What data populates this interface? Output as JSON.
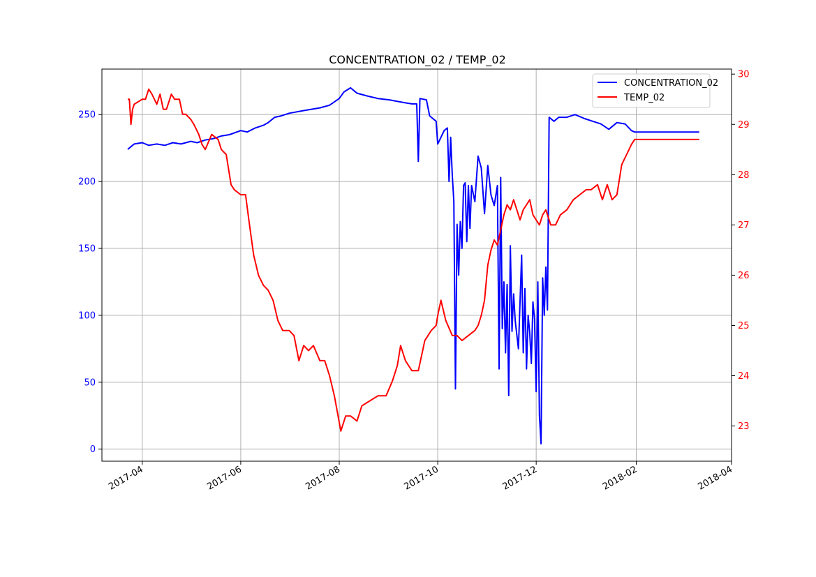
{
  "chart_data": {
    "type": "line",
    "title": "CONCENTRATION_02 / TEMP_02",
    "xlabel": "",
    "ylabel": "",
    "y2label": "",
    "x_type": "date",
    "xlim": [
      "2017-03-07",
      "2018-04-01"
    ],
    "x_ticks": [
      "2017-04-01",
      "2017-06-01",
      "2017-08-01",
      "2017-10-01",
      "2017-12-01",
      "2018-02-01",
      "2018-04-01"
    ],
    "x_tick_labels": [
      "2017-04",
      "2017-06",
      "2017-08",
      "2017-10",
      "2017-12",
      "2018-02",
      "2018-04"
    ],
    "ylim": [
      -9,
      284
    ],
    "y_ticks": [
      0,
      50,
      100,
      150,
      200,
      250
    ],
    "y2lim": [
      22.3,
      30.1
    ],
    "y2_ticks": [
      23,
      24,
      25,
      26,
      27,
      28,
      29,
      30
    ],
    "grid": true,
    "legend_position": "upper right",
    "colors": {
      "primary_axis": "#0000ff",
      "secondary_axis": "#ff0000",
      "grid": "#b0b0b0"
    },
    "series": [
      {
        "name": "CONCENTRATION_02",
        "axis": "left",
        "color": "#0000ff",
        "points": [
          [
            "2017-03-23",
            224
          ],
          [
            "2017-03-25",
            226
          ],
          [
            "2017-03-27",
            228
          ],
          [
            "2017-04-01",
            229
          ],
          [
            "2017-04-05",
            227
          ],
          [
            "2017-04-10",
            228
          ],
          [
            "2017-04-15",
            227
          ],
          [
            "2017-04-20",
            229
          ],
          [
            "2017-04-25",
            228
          ],
          [
            "2017-05-01",
            230
          ],
          [
            "2017-05-05",
            229
          ],
          [
            "2017-05-10",
            231
          ],
          [
            "2017-05-15",
            232
          ],
          [
            "2017-05-20",
            234
          ],
          [
            "2017-05-25",
            235
          ],
          [
            "2017-06-01",
            238
          ],
          [
            "2017-06-05",
            237
          ],
          [
            "2017-06-10",
            240
          ],
          [
            "2017-06-15",
            242
          ],
          [
            "2017-06-18",
            244
          ],
          [
            "2017-06-22",
            248
          ],
          [
            "2017-06-26",
            249
          ],
          [
            "2017-07-01",
            251
          ],
          [
            "2017-07-10",
            253
          ],
          [
            "2017-07-20",
            255
          ],
          [
            "2017-07-26",
            257
          ],
          [
            "2017-08-01",
            262
          ],
          [
            "2017-08-04",
            267
          ],
          [
            "2017-08-08",
            270
          ],
          [
            "2017-08-12",
            266
          ],
          [
            "2017-08-18",
            264
          ],
          [
            "2017-08-25",
            262
          ],
          [
            "2017-09-01",
            261
          ],
          [
            "2017-09-10",
            259
          ],
          [
            "2017-09-15",
            258
          ],
          [
            "2017-09-18",
            258
          ],
          [
            "2017-09-19",
            215
          ],
          [
            "2017-09-20",
            262
          ],
          [
            "2017-09-24",
            261
          ],
          [
            "2017-09-26",
            249
          ],
          [
            "2017-09-30",
            245
          ],
          [
            "2017-10-01",
            228
          ],
          [
            "2017-10-03",
            233
          ],
          [
            "2017-10-05",
            238
          ],
          [
            "2017-10-07",
            240
          ],
          [
            "2017-10-08",
            200
          ],
          [
            "2017-10-09",
            233
          ],
          [
            "2017-10-10",
            205
          ],
          [
            "2017-10-11",
            185
          ],
          [
            "2017-10-12",
            45
          ],
          [
            "2017-10-13",
            168
          ],
          [
            "2017-10-14",
            130
          ],
          [
            "2017-10-15",
            170
          ],
          [
            "2017-10-16",
            150
          ],
          [
            "2017-10-17",
            197
          ],
          [
            "2017-10-18",
            199
          ],
          [
            "2017-10-19",
            155
          ],
          [
            "2017-10-20",
            197
          ],
          [
            "2017-10-21",
            165
          ],
          [
            "2017-10-22",
            197
          ],
          [
            "2017-10-24",
            185
          ],
          [
            "2017-10-26",
            219
          ],
          [
            "2017-10-28",
            210
          ],
          [
            "2017-10-30",
            176
          ],
          [
            "2017-11-01",
            212
          ],
          [
            "2017-11-03",
            190
          ],
          [
            "2017-11-05",
            182
          ],
          [
            "2017-11-07",
            197
          ],
          [
            "2017-11-08",
            60
          ],
          [
            "2017-11-09",
            203
          ],
          [
            "2017-11-10",
            90
          ],
          [
            "2017-11-11",
            125
          ],
          [
            "2017-11-12",
            72
          ],
          [
            "2017-11-13",
            123
          ],
          [
            "2017-11-14",
            40
          ],
          [
            "2017-11-15",
            152
          ],
          [
            "2017-11-16",
            88
          ],
          [
            "2017-11-17",
            116
          ],
          [
            "2017-11-18",
            96
          ],
          [
            "2017-11-20",
            75
          ],
          [
            "2017-11-22",
            145
          ],
          [
            "2017-11-23",
            72
          ],
          [
            "2017-11-24",
            120
          ],
          [
            "2017-11-25",
            60
          ],
          [
            "2017-11-26",
            100
          ],
          [
            "2017-11-27",
            87
          ],
          [
            "2017-11-28",
            64
          ],
          [
            "2017-11-29",
            110
          ],
          [
            "2017-11-30",
            97
          ],
          [
            "2017-12-01",
            43
          ],
          [
            "2017-12-02",
            125
          ],
          [
            "2017-12-03",
            25
          ],
          [
            "2017-12-04",
            4
          ],
          [
            "2017-12-05",
            128
          ],
          [
            "2017-12-06",
            100
          ],
          [
            "2017-12-07",
            136
          ],
          [
            "2017-12-08",
            104
          ],
          [
            "2017-12-09",
            248
          ],
          [
            "2017-12-12",
            245
          ],
          [
            "2017-12-15",
            248
          ],
          [
            "2017-12-20",
            248
          ],
          [
            "2017-12-25",
            250
          ],
          [
            "2017-12-31",
            247
          ],
          [
            "2018-01-05",
            245
          ],
          [
            "2018-01-10",
            243
          ],
          [
            "2018-01-15",
            239
          ],
          [
            "2018-01-20",
            244
          ],
          [
            "2018-01-25",
            243
          ],
          [
            "2018-01-29",
            238
          ],
          [
            "2018-01-31",
            237
          ],
          [
            "2018-02-08",
            237
          ],
          [
            "2018-03-12",
            237
          ]
        ]
      },
      {
        "name": "TEMP_02",
        "axis": "right",
        "color": "#ff0000",
        "points": [
          [
            "2017-03-23",
            29.5
          ],
          [
            "2017-03-24",
            29.5
          ],
          [
            "2017-03-25",
            29.0
          ],
          [
            "2017-03-26",
            29.3
          ],
          [
            "2017-03-27",
            29.4
          ],
          [
            "2017-04-01",
            29.5
          ],
          [
            "2017-04-03",
            29.5
          ],
          [
            "2017-04-05",
            29.7
          ],
          [
            "2017-04-07",
            29.6
          ],
          [
            "2017-04-10",
            29.4
          ],
          [
            "2017-04-12",
            29.6
          ],
          [
            "2017-04-14",
            29.3
          ],
          [
            "2017-04-16",
            29.3
          ],
          [
            "2017-04-19",
            29.6
          ],
          [
            "2017-04-21",
            29.5
          ],
          [
            "2017-04-24",
            29.5
          ],
          [
            "2017-04-26",
            29.2
          ],
          [
            "2017-04-28",
            29.2
          ],
          [
            "2017-05-01",
            29.1
          ],
          [
            "2017-05-03",
            29.0
          ],
          [
            "2017-05-06",
            28.8
          ],
          [
            "2017-05-08",
            28.6
          ],
          [
            "2017-05-10",
            28.5
          ],
          [
            "2017-05-14",
            28.8
          ],
          [
            "2017-05-18",
            28.7
          ],
          [
            "2017-05-20",
            28.5
          ],
          [
            "2017-05-23",
            28.4
          ],
          [
            "2017-05-26",
            27.8
          ],
          [
            "2017-05-28",
            27.7
          ],
          [
            "2017-06-01",
            27.6
          ],
          [
            "2017-06-04",
            27.6
          ],
          [
            "2017-06-06",
            27.1
          ],
          [
            "2017-06-09",
            26.4
          ],
          [
            "2017-06-12",
            26.0
          ],
          [
            "2017-06-15",
            25.8
          ],
          [
            "2017-06-18",
            25.7
          ],
          [
            "2017-06-21",
            25.5
          ],
          [
            "2017-06-24",
            25.1
          ],
          [
            "2017-06-27",
            24.9
          ],
          [
            "2017-07-01",
            24.9
          ],
          [
            "2017-07-04",
            24.8
          ],
          [
            "2017-07-07",
            24.3
          ],
          [
            "2017-07-10",
            24.6
          ],
          [
            "2017-07-13",
            24.5
          ],
          [
            "2017-07-16",
            24.6
          ],
          [
            "2017-07-20",
            24.3
          ],
          [
            "2017-07-23",
            24.3
          ],
          [
            "2017-07-26",
            24.0
          ],
          [
            "2017-07-29",
            23.6
          ],
          [
            "2017-08-02",
            22.9
          ],
          [
            "2017-08-05",
            23.2
          ],
          [
            "2017-08-08",
            23.2
          ],
          [
            "2017-08-12",
            23.1
          ],
          [
            "2017-08-15",
            23.4
          ],
          [
            "2017-08-20",
            23.5
          ],
          [
            "2017-08-25",
            23.6
          ],
          [
            "2017-08-30",
            23.6
          ],
          [
            "2017-09-03",
            23.9
          ],
          [
            "2017-09-06",
            24.2
          ],
          [
            "2017-09-08",
            24.6
          ],
          [
            "2017-09-11",
            24.3
          ],
          [
            "2017-09-15",
            24.1
          ],
          [
            "2017-09-19",
            24.1
          ],
          [
            "2017-09-23",
            24.7
          ],
          [
            "2017-09-27",
            24.9
          ],
          [
            "2017-09-30",
            25.0
          ],
          [
            "2017-10-01",
            25.2
          ],
          [
            "2017-10-03",
            25.5
          ],
          [
            "2017-10-06",
            25.1
          ],
          [
            "2017-10-10",
            24.8
          ],
          [
            "2017-10-13",
            24.8
          ],
          [
            "2017-10-16",
            24.7
          ],
          [
            "2017-10-20",
            24.8
          ],
          [
            "2017-10-24",
            24.9
          ],
          [
            "2017-10-26",
            25.0
          ],
          [
            "2017-10-28",
            25.2
          ],
          [
            "2017-10-30",
            25.5
          ],
          [
            "2017-11-01",
            26.2
          ],
          [
            "2017-11-03",
            26.5
          ],
          [
            "2017-11-05",
            26.7
          ],
          [
            "2017-11-07",
            26.6
          ],
          [
            "2017-11-09",
            26.9
          ],
          [
            "2017-11-11",
            27.2
          ],
          [
            "2017-11-13",
            27.4
          ],
          [
            "2017-11-15",
            27.3
          ],
          [
            "2017-11-17",
            27.5
          ],
          [
            "2017-11-19",
            27.3
          ],
          [
            "2017-11-21",
            27.1
          ],
          [
            "2017-11-23",
            27.3
          ],
          [
            "2017-11-25",
            27.4
          ],
          [
            "2017-11-27",
            27.5
          ],
          [
            "2017-11-29",
            27.2
          ],
          [
            "2017-12-01",
            27.1
          ],
          [
            "2017-12-03",
            27.0
          ],
          [
            "2017-12-05",
            27.2
          ],
          [
            "2017-12-07",
            27.3
          ],
          [
            "2017-12-10",
            27.0
          ],
          [
            "2017-12-13",
            27.0
          ],
          [
            "2017-12-16",
            27.2
          ],
          [
            "2017-12-20",
            27.3
          ],
          [
            "2017-12-24",
            27.5
          ],
          [
            "2017-12-28",
            27.6
          ],
          [
            "2018-01-01",
            27.7
          ],
          [
            "2018-01-04",
            27.7
          ],
          [
            "2018-01-08",
            27.8
          ],
          [
            "2018-01-11",
            27.5
          ],
          [
            "2018-01-14",
            27.8
          ],
          [
            "2018-01-17",
            27.5
          ],
          [
            "2018-01-20",
            27.6
          ],
          [
            "2018-01-23",
            28.2
          ],
          [
            "2018-01-26",
            28.4
          ],
          [
            "2018-01-29",
            28.6
          ],
          [
            "2018-01-31",
            28.7
          ],
          [
            "2018-03-12",
            28.7
          ]
        ]
      }
    ]
  }
}
